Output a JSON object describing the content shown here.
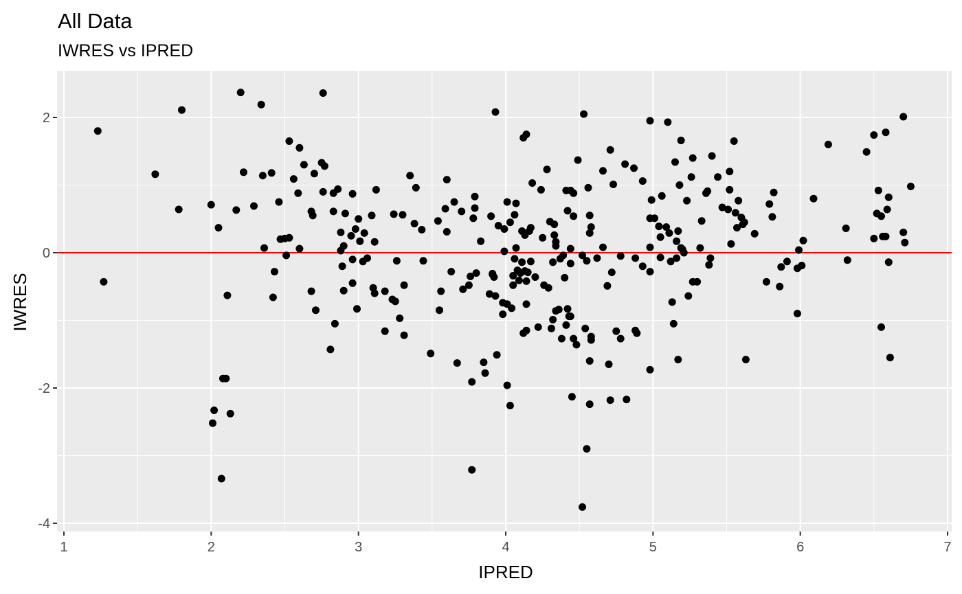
{
  "chart_data": {
    "type": "scatter",
    "title": "All Data",
    "subtitle": "IWRES vs IPRED",
    "xlabel": "IPRED",
    "ylabel": "IWRES",
    "xlim": [
      1,
      7
    ],
    "ylim": [
      -4,
      2.5
    ],
    "x_ticks": [
      "1",
      "2",
      "3",
      "4",
      "5",
      "6",
      "7"
    ],
    "y_ticks": [
      "-4",
      "-2",
      "0",
      "2"
    ],
    "grid": true,
    "reference_line": {
      "y": 0,
      "color": "#ff0000"
    },
    "colors": {
      "panel": "#ebebeb",
      "grid": "#ffffff",
      "point": "#000000",
      "reference": "#ff0000",
      "tick": "#4d4d4d"
    },
    "points": [
      [
        1.23,
        1.8
      ],
      [
        1.27,
        -0.43
      ],
      [
        1.62,
        1.16
      ],
      [
        1.78,
        0.64
      ],
      [
        1.8,
        2.11
      ],
      [
        2.0,
        0.71
      ],
      [
        2.01,
        -2.52
      ],
      [
        2.02,
        -2.33
      ],
      [
        2.05,
        0.37
      ],
      [
        2.07,
        -3.34
      ],
      [
        2.08,
        -1.86
      ],
      [
        2.1,
        -1.86
      ],
      [
        2.11,
        -0.63
      ],
      [
        2.13,
        -2.38
      ],
      [
        2.17,
        0.63
      ],
      [
        2.2,
        2.37
      ],
      [
        2.22,
        1.19
      ],
      [
        2.29,
        0.69
      ],
      [
        2.34,
        2.19
      ],
      [
        2.35,
        1.14
      ],
      [
        2.36,
        0.07
      ],
      [
        2.41,
        1.18
      ],
      [
        2.42,
        -0.66
      ],
      [
        2.43,
        -0.28
      ],
      [
        2.46,
        0.75
      ],
      [
        2.47,
        0.2
      ],
      [
        2.5,
        0.21
      ],
      [
        2.51,
        -0.04
      ],
      [
        2.53,
        0.22
      ],
      [
        2.53,
        1.65
      ],
      [
        2.56,
        1.09
      ],
      [
        2.59,
        0.88
      ],
      [
        2.6,
        1.55
      ],
      [
        2.6,
        0.06
      ],
      [
        2.63,
        1.3
      ],
      [
        2.68,
        0.61
      ],
      [
        2.68,
        -0.57
      ],
      [
        2.69,
        0.55
      ],
      [
        2.7,
        1.17
      ],
      [
        2.71,
        -0.85
      ],
      [
        2.75,
        1.33
      ],
      [
        2.76,
        0.9
      ],
      [
        2.76,
        2.36
      ],
      [
        2.77,
        1.28
      ],
      [
        2.81,
        -1.43
      ],
      [
        2.83,
        0.88
      ],
      [
        2.83,
        0.61
      ],
      [
        2.84,
        -1.05
      ],
      [
        2.86,
        0.94
      ],
      [
        2.88,
        0.3
      ],
      [
        2.88,
        0.03
      ],
      [
        2.89,
        -0.2
      ],
      [
        2.9,
        0.1
      ],
      [
        2.9,
        -0.56
      ],
      [
        2.91,
        0.58
      ],
      [
        2.95,
        0.25
      ],
      [
        2.96,
        0.87
      ],
      [
        2.96,
        -0.1
      ],
      [
        2.96,
        -0.45
      ],
      [
        2.98,
        0.35
      ],
      [
        2.99,
        -0.83
      ],
      [
        3.0,
        0.5
      ],
      [
        3.01,
        0.17
      ],
      [
        3.03,
        -0.13
      ],
      [
        3.04,
        0.29
      ],
      [
        3.06,
        -0.08
      ],
      [
        3.09,
        0.55
      ],
      [
        3.1,
        -0.52
      ],
      [
        3.11,
        0.16
      ],
      [
        3.11,
        -0.6
      ],
      [
        3.12,
        0.93
      ],
      [
        3.18,
        -1.16
      ],
      [
        3.18,
        -0.57
      ],
      [
        3.23,
        -0.69
      ],
      [
        3.24,
        0.57
      ],
      [
        3.25,
        -0.72
      ],
      [
        3.26,
        -0.12
      ],
      [
        3.28,
        -0.97
      ],
      [
        3.3,
        0.56
      ],
      [
        3.31,
        -0.48
      ],
      [
        3.31,
        -1.22
      ],
      [
        3.35,
        1.14
      ],
      [
        3.38,
        0.43
      ],
      [
        3.39,
        0.96
      ],
      [
        3.43,
        0.34
      ],
      [
        3.44,
        -0.12
      ],
      [
        3.49,
        -1.49
      ],
      [
        3.54,
        0.47
      ],
      [
        3.55,
        -0.85
      ],
      [
        3.56,
        -0.57
      ],
      [
        3.59,
        0.65
      ],
      [
        3.6,
        0.31
      ],
      [
        3.6,
        1.08
      ],
      [
        3.63,
        -0.28
      ],
      [
        3.65,
        0.75
      ],
      [
        3.67,
        -1.63
      ],
      [
        3.7,
        0.61
      ],
      [
        3.71,
        -0.54
      ],
      [
        3.75,
        -0.48
      ],
      [
        3.76,
        -0.35
      ],
      [
        3.77,
        -1.91
      ],
      [
        3.77,
        -3.21
      ],
      [
        3.78,
        0.51
      ],
      [
        3.79,
        0.83
      ],
      [
        3.79,
        0.66
      ],
      [
        3.8,
        -0.3
      ],
      [
        3.83,
        0.17
      ],
      [
        3.85,
        -1.62
      ],
      [
        3.86,
        -1.78
      ],
      [
        3.89,
        -0.61
      ],
      [
        3.9,
        0.54
      ],
      [
        3.91,
        -0.32
      ],
      [
        3.91,
        -0.31
      ],
      [
        3.92,
        -0.36
      ],
      [
        3.93,
        -0.64
      ],
      [
        3.93,
        2.08
      ],
      [
        3.94,
        -1.51
      ],
      [
        3.95,
        0.4
      ],
      [
        3.98,
        -0.74
      ],
      [
        3.98,
        -0.91
      ],
      [
        3.99,
        0.02
      ],
      [
        3.99,
        0.35
      ],
      [
        4.01,
        0.75
      ],
      [
        4.01,
        -0.76
      ],
      [
        4.01,
        -1.96
      ],
      [
        4.03,
        -2.26
      ],
      [
        4.03,
        0.45
      ],
      [
        4.04,
        -0.82
      ],
      [
        4.05,
        -0.34
      ],
      [
        4.05,
        -0.48
      ],
      [
        4.06,
        0.56
      ],
      [
        4.06,
        -0.09
      ],
      [
        4.07,
        0.07
      ],
      [
        4.07,
        0.73
      ],
      [
        4.08,
        -0.26
      ],
      [
        4.09,
        -0.41
      ],
      [
        4.1,
        -0.3
      ],
      [
        4.11,
        -0.14
      ],
      [
        4.11,
        0.32
      ],
      [
        4.12,
        -1.19
      ],
      [
        4.12,
        1.7
      ],
      [
        4.13,
        0.26
      ],
      [
        4.13,
        -0.27
      ],
      [
        4.14,
        1.75
      ],
      [
        4.14,
        -1.15
      ],
      [
        4.14,
        -0.42
      ],
      [
        4.14,
        -0.76
      ],
      [
        4.15,
        -0.29
      ],
      [
        4.16,
        0.32
      ],
      [
        4.17,
        0.37
      ],
      [
        4.17,
        -0.13
      ],
      [
        4.18,
        1.03
      ],
      [
        4.2,
        -0.36
      ],
      [
        4.22,
        -1.1
      ],
      [
        4.24,
        0.93
      ],
      [
        4.25,
        0.22
      ],
      [
        4.26,
        -0.48
      ],
      [
        4.28,
        1.23
      ],
      [
        4.29,
        -0.52
      ],
      [
        4.3,
        0.46
      ],
      [
        4.31,
        -1.12
      ],
      [
        4.32,
        -0.99
      ],
      [
        4.32,
        -0.14
      ],
      [
        4.33,
        0.42
      ],
      [
        4.33,
        0.26
      ],
      [
        4.34,
        0.16
      ],
      [
        4.34,
        0.1
      ],
      [
        4.34,
        -0.86
      ],
      [
        4.36,
        -0.84
      ],
      [
        4.37,
        -0.09
      ],
      [
        4.38,
        -1.27
      ],
      [
        4.39,
        -0.04
      ],
      [
        4.4,
        -0.37
      ],
      [
        4.41,
        -1.07
      ],
      [
        4.41,
        0.92
      ],
      [
        4.42,
        -0.83
      ],
      [
        4.42,
        0.62
      ],
      [
        4.43,
        -0.94
      ],
      [
        4.44,
        0.92
      ],
      [
        4.44,
        -0.94
      ],
      [
        4.44,
        0.06
      ],
      [
        4.44,
        -0.16
      ],
      [
        4.45,
        -2.13
      ],
      [
        4.46,
        -1.27
      ],
      [
        4.46,
        0.88
      ],
      [
        4.46,
        0.54
      ],
      [
        4.48,
        -1.36
      ],
      [
        4.49,
        1.37
      ],
      [
        4.52,
        -0.04
      ],
      [
        4.52,
        -3.76
      ],
      [
        4.53,
        2.05
      ],
      [
        4.54,
        -1.12
      ],
      [
        4.55,
        -0.12
      ],
      [
        4.55,
        -2.9
      ],
      [
        4.56,
        0.96
      ],
      [
        4.57,
        -1.6
      ],
      [
        4.57,
        -2.24
      ],
      [
        4.57,
        0.29
      ],
      [
        4.57,
        0.55
      ],
      [
        4.58,
        -1.24
      ],
      [
        4.58,
        -1.29
      ],
      [
        4.58,
        0.38
      ],
      [
        4.62,
        -0.08
      ],
      [
        4.66,
        1.21
      ],
      [
        4.66,
        0.08
      ],
      [
        4.69,
        -0.49
      ],
      [
        4.7,
        -1.65
      ],
      [
        4.71,
        1.52
      ],
      [
        4.71,
        -2.18
      ],
      [
        4.72,
        -0.29
      ],
      [
        4.73,
        1.01
      ],
      [
        4.75,
        -1.16
      ],
      [
        4.78,
        -1.27
      ],
      [
        4.78,
        -0.05
      ],
      [
        4.81,
        1.31
      ],
      [
        4.82,
        -2.17
      ],
      [
        4.87,
        1.25
      ],
      [
        4.88,
        -1.15
      ],
      [
        4.88,
        -0.08
      ],
      [
        4.89,
        -1.19
      ],
      [
        4.93,
        1.06
      ],
      [
        4.93,
        -0.2
      ],
      [
        4.98,
        -1.73
      ],
      [
        4.98,
        0.08
      ],
      [
        4.98,
        -0.28
      ],
      [
        4.98,
        0.51
      ],
      [
        4.98,
        1.95
      ],
      [
        4.99,
        0.78
      ],
      [
        5.01,
        0.51
      ],
      [
        5.04,
        0.39
      ],
      [
        5.05,
        0.23
      ],
      [
        5.05,
        -0.07
      ],
      [
        5.06,
        0.84
      ],
      [
        5.09,
        0.38
      ],
      [
        5.1,
        1.93
      ],
      [
        5.11,
        0.29
      ],
      [
        5.12,
        -0.13
      ],
      [
        5.13,
        -0.73
      ],
      [
        5.14,
        -1.05
      ],
      [
        5.15,
        1.34
      ],
      [
        5.16,
        0.17
      ],
      [
        5.16,
        -0.08
      ],
      [
        5.17,
        0.32
      ],
      [
        5.17,
        -1.58
      ],
      [
        5.18,
        1.0
      ],
      [
        5.19,
        1.66
      ],
      [
        5.19,
        0.07
      ],
      [
        5.2,
        0.05
      ],
      [
        5.21,
        0.0
      ],
      [
        5.23,
        0.77
      ],
      [
        5.24,
        -0.64
      ],
      [
        5.26,
        1.12
      ],
      [
        5.27,
        1.4
      ],
      [
        5.27,
        -0.43
      ],
      [
        5.3,
        -0.43
      ],
      [
        5.32,
        0.07
      ],
      [
        5.33,
        0.47
      ],
      [
        5.36,
        0.88
      ],
      [
        5.37,
        0.91
      ],
      [
        5.38,
        -0.18
      ],
      [
        5.39,
        -0.08
      ],
      [
        5.4,
        1.43
      ],
      [
        5.44,
        1.12
      ],
      [
        5.47,
        0.67
      ],
      [
        5.51,
        0.64
      ],
      [
        5.52,
        0.93
      ],
      [
        5.52,
        1.2
      ],
      [
        5.53,
        0.13
      ],
      [
        5.55,
        1.65
      ],
      [
        5.56,
        0.59
      ],
      [
        5.57,
        0.37
      ],
      [
        5.58,
        0.77
      ],
      [
        5.6,
        0.52
      ],
      [
        5.61,
        0.42
      ],
      [
        5.62,
        0.45
      ],
      [
        5.63,
        -1.58
      ],
      [
        5.69,
        0.28
      ],
      [
        5.77,
        -0.43
      ],
      [
        5.79,
        0.72
      ],
      [
        5.81,
        0.53
      ],
      [
        5.82,
        0.89
      ],
      [
        5.86,
        -0.5
      ],
      [
        5.87,
        -0.21
      ],
      [
        5.91,
        -0.13
      ],
      [
        5.98,
        -0.9
      ],
      [
        5.98,
        -0.23
      ],
      [
        5.99,
        0.04
      ],
      [
        6.01,
        -0.19
      ],
      [
        6.02,
        0.18
      ],
      [
        6.09,
        0.8
      ],
      [
        6.19,
        1.6
      ],
      [
        6.31,
        0.36
      ],
      [
        6.32,
        -0.11
      ],
      [
        6.45,
        1.49
      ],
      [
        6.5,
        1.74
      ],
      [
        6.5,
        0.21
      ],
      [
        6.52,
        0.58
      ],
      [
        6.53,
        0.92
      ],
      [
        6.55,
        0.54
      ],
      [
        6.55,
        -1.1
      ],
      [
        6.56,
        0.24
      ],
      [
        6.58,
        0.24
      ],
      [
        6.58,
        1.78
      ],
      [
        6.59,
        0.64
      ],
      [
        6.6,
        0.82
      ],
      [
        6.6,
        -0.14
      ],
      [
        6.61,
        -1.55
      ],
      [
        6.7,
        2.01
      ],
      [
        6.7,
        0.3
      ],
      [
        6.71,
        0.15
      ],
      [
        6.75,
        0.98
      ]
    ]
  }
}
